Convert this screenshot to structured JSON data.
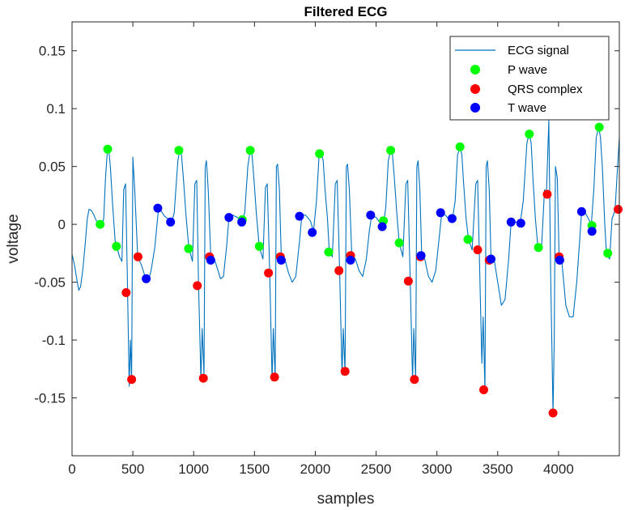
{
  "chart_data": {
    "type": "line",
    "title": "Filtered ECG",
    "xlabel": "samples",
    "ylabel": "voltage",
    "xlim": [
      0,
      4500
    ],
    "ylim": [
      -0.2,
      0.175
    ],
    "x_ticks": [
      0,
      500,
      1000,
      1500,
      2000,
      2500,
      3000,
      3500,
      4000
    ],
    "x_tick_labels": [
      "0",
      "500",
      "1000",
      "1500",
      "2000",
      "2500",
      "3000",
      "3500",
      "4000"
    ],
    "y_ticks": [
      0.15,
      0.1,
      0.05,
      0,
      -0.05,
      -0.1,
      -0.15
    ],
    "y_tick_labels": [
      "0.15",
      "0.1",
      "0.05",
      "0",
      "-0.05",
      "-0.1",
      "-0.15"
    ],
    "grid": false,
    "legend_position": "top-right",
    "colors": {
      "signal": "#0072bd",
      "p_wave": "#00ff00",
      "qrs": "#ff0000",
      "t_wave": "#0000ff"
    },
    "series": [
      {
        "name": "ECG signal",
        "kind": "line",
        "points": [
          [
            0,
            -0.026
          ],
          [
            20,
            -0.035
          ],
          [
            40,
            -0.048
          ],
          [
            55,
            -0.057
          ],
          [
            70,
            -0.054
          ],
          [
            90,
            -0.038
          ],
          [
            110,
            -0.015
          ],
          [
            125,
            0.005
          ],
          [
            140,
            0.013
          ],
          [
            160,
            0.012
          ],
          [
            180,
            0.008
          ],
          [
            200,
            0.003
          ],
          [
            215,
            0.0
          ],
          [
            230,
            0.001
          ],
          [
            245,
            -0.003
          ],
          [
            260,
            0.005
          ],
          [
            275,
            0.04
          ],
          [
            290,
            0.063
          ],
          [
            300,
            0.067
          ],
          [
            315,
            0.05
          ],
          [
            335,
            0.015
          ],
          [
            355,
            -0.015
          ],
          [
            370,
            -0.02
          ],
          [
            390,
            -0.028
          ],
          [
            410,
            -0.032
          ],
          [
            425,
            0.03
          ],
          [
            440,
            0.035
          ],
          [
            455,
            -0.05
          ],
          [
            470,
            -0.14
          ],
          [
            480,
            -0.1
          ],
          [
            490,
            -0.135
          ],
          [
            500,
            0.058
          ],
          [
            515,
            0.03
          ],
          [
            540,
            -0.028
          ],
          [
            570,
            -0.035
          ],
          [
            600,
            -0.045
          ],
          [
            625,
            -0.05
          ],
          [
            650,
            -0.04
          ],
          [
            680,
            -0.02
          ],
          [
            710,
            0.013
          ],
          [
            730,
            0.012
          ],
          [
            760,
            0.007
          ],
          [
            800,
            0.004
          ],
          [
            820,
            0.002
          ],
          [
            840,
            0.01
          ],
          [
            870,
            0.055
          ],
          [
            885,
            0.064
          ],
          [
            900,
            0.06
          ],
          [
            915,
            0.04
          ],
          [
            935,
            0.01
          ],
          [
            960,
            -0.02
          ],
          [
            990,
            -0.032
          ],
          [
            1010,
            0.035
          ],
          [
            1025,
            0.038
          ],
          [
            1040,
            -0.05
          ],
          [
            1060,
            -0.135
          ],
          [
            1070,
            -0.09
          ],
          [
            1085,
            -0.13
          ],
          [
            1095,
            0.05
          ],
          [
            1105,
            0.055
          ],
          [
            1120,
            0.03
          ],
          [
            1140,
            -0.027
          ],
          [
            1170,
            -0.03
          ],
          [
            1200,
            -0.04
          ],
          [
            1220,
            -0.047
          ],
          [
            1245,
            -0.045
          ],
          [
            1270,
            -0.02
          ],
          [
            1290,
            0.006
          ],
          [
            1320,
            0.008
          ],
          [
            1360,
            0.006
          ],
          [
            1395,
            0.003
          ],
          [
            1420,
            0.01
          ],
          [
            1445,
            0.05
          ],
          [
            1465,
            0.064
          ],
          [
            1480,
            0.06
          ],
          [
            1495,
            0.04
          ],
          [
            1515,
            0.01
          ],
          [
            1540,
            -0.02
          ],
          [
            1570,
            -0.03
          ],
          [
            1590,
            0.032
          ],
          [
            1605,
            0.035
          ],
          [
            1625,
            -0.04
          ],
          [
            1645,
            -0.135
          ],
          [
            1655,
            -0.09
          ],
          [
            1670,
            -0.132
          ],
          [
            1680,
            0.05
          ],
          [
            1690,
            0.052
          ],
          [
            1705,
            0.03
          ],
          [
            1720,
            -0.027
          ],
          [
            1750,
            -0.03
          ],
          [
            1780,
            -0.042
          ],
          [
            1810,
            -0.05
          ],
          [
            1840,
            -0.045
          ],
          [
            1870,
            -0.015
          ],
          [
            1890,
            0.008
          ],
          [
            1920,
            0.008
          ],
          [
            1960,
            0.003
          ],
          [
            1985,
            -0.006
          ],
          [
            2010,
            0.02
          ],
          [
            2030,
            0.058
          ],
          [
            2050,
            0.062
          ],
          [
            2065,
            0.055
          ],
          [
            2080,
            0.03
          ],
          [
            2100,
            0.005
          ],
          [
            2115,
            -0.023
          ],
          [
            2140,
            -0.028
          ],
          [
            2165,
            0.035
          ],
          [
            2180,
            0.038
          ],
          [
            2200,
            -0.04
          ],
          [
            2220,
            -0.13
          ],
          [
            2230,
            -0.09
          ],
          [
            2245,
            -0.128
          ],
          [
            2255,
            0.05
          ],
          [
            2265,
            0.052
          ],
          [
            2280,
            0.03
          ],
          [
            2300,
            -0.026
          ],
          [
            2330,
            -0.03
          ],
          [
            2360,
            -0.04
          ],
          [
            2390,
            -0.045
          ],
          [
            2420,
            -0.03
          ],
          [
            2445,
            -0.005
          ],
          [
            2465,
            0.008
          ],
          [
            2500,
            0.006
          ],
          [
            2540,
            0.0
          ],
          [
            2560,
            0.0
          ],
          [
            2580,
            0.015
          ],
          [
            2600,
            0.055
          ],
          [
            2620,
            0.064
          ],
          [
            2635,
            0.06
          ],
          [
            2650,
            0.04
          ],
          [
            2670,
            0.01
          ],
          [
            2690,
            -0.016
          ],
          [
            2720,
            -0.028
          ],
          [
            2745,
            0.035
          ],
          [
            2760,
            0.038
          ],
          [
            2780,
            -0.045
          ],
          [
            2800,
            -0.135
          ],
          [
            2810,
            -0.09
          ],
          [
            2825,
            -0.133
          ],
          [
            2835,
            0.05
          ],
          [
            2845,
            0.055
          ],
          [
            2860,
            0.03
          ],
          [
            2875,
            -0.027
          ],
          [
            2900,
            -0.03
          ],
          [
            2930,
            -0.045
          ],
          [
            2960,
            -0.05
          ],
          [
            2990,
            -0.04
          ],
          [
            3020,
            -0.01
          ],
          [
            3040,
            0.01
          ],
          [
            3070,
            0.008
          ],
          [
            3100,
            0.004
          ],
          [
            3130,
            0.006
          ],
          [
            3150,
            0.02
          ],
          [
            3170,
            0.06
          ],
          [
            3190,
            0.067
          ],
          [
            3205,
            0.06
          ],
          [
            3220,
            0.035
          ],
          [
            3240,
            0.005
          ],
          [
            3260,
            -0.013
          ],
          [
            3290,
            -0.022
          ],
          [
            3320,
            0.035
          ],
          [
            3335,
            0.038
          ],
          [
            3350,
            -0.03
          ],
          [
            3370,
            -0.12
          ],
          [
            3380,
            -0.08
          ],
          [
            3395,
            -0.143
          ],
          [
            3405,
            0.05
          ],
          [
            3415,
            0.055
          ],
          [
            3430,
            0.03
          ],
          [
            3445,
            -0.03
          ],
          [
            3470,
            -0.03
          ],
          [
            3500,
            -0.05
          ],
          [
            3530,
            -0.07
          ],
          [
            3560,
            -0.065
          ],
          [
            3590,
            -0.03
          ],
          [
            3610,
            0.002
          ],
          [
            3650,
            0.002
          ],
          [
            3685,
            0.001
          ],
          [
            3710,
            0.02
          ],
          [
            3740,
            0.07
          ],
          [
            3760,
            0.079
          ],
          [
            3775,
            0.07
          ],
          [
            3790,
            0.04
          ],
          [
            3810,
            0.005
          ],
          [
            3830,
            -0.02
          ],
          [
            3860,
            -0.02
          ],
          [
            3885,
            0.03
          ],
          [
            3900,
            0.025
          ],
          [
            3920,
            0.09
          ],
          [
            3935,
            -0.04
          ],
          [
            3955,
            -0.163
          ],
          [
            3965,
            -0.1
          ],
          [
            3975,
            0.05
          ],
          [
            3990,
            0.04
          ],
          [
            4005,
            -0.028
          ],
          [
            4030,
            -0.035
          ],
          [
            4060,
            -0.07
          ],
          [
            4090,
            -0.08
          ],
          [
            4120,
            -0.08
          ],
          [
            4150,
            -0.05
          ],
          [
            4170,
            -0.02
          ],
          [
            4190,
            0.011
          ],
          [
            4220,
            0.01
          ],
          [
            4250,
            0.004
          ],
          [
            4270,
            0.0
          ],
          [
            4290,
            0.03
          ],
          [
            4310,
            0.075
          ],
          [
            4330,
            0.084
          ],
          [
            4345,
            0.075
          ],
          [
            4360,
            0.05
          ],
          [
            4380,
            0.0
          ],
          [
            4395,
            -0.026
          ],
          [
            4420,
            -0.03
          ],
          [
            4440,
            0.005
          ],
          [
            4465,
            0.012
          ],
          [
            4480,
            0.04
          ],
          [
            4500,
            0.075
          ]
        ]
      },
      {
        "name": "P wave",
        "kind": "markers",
        "points": [
          [
            231,
            0.0
          ],
          [
            293,
            0.065
          ],
          [
            365,
            -0.019
          ],
          [
            878,
            0.064
          ],
          [
            958,
            -0.021
          ],
          [
            1400,
            0.004
          ],
          [
            1465,
            0.064
          ],
          [
            1540,
            -0.019
          ],
          [
            2035,
            0.061
          ],
          [
            2110,
            -0.024
          ],
          [
            2560,
            0.003
          ],
          [
            2620,
            0.064
          ],
          [
            2690,
            -0.016
          ],
          [
            3125,
            0.005
          ],
          [
            3190,
            0.067
          ],
          [
            3255,
            -0.013
          ],
          [
            3760,
            0.078
          ],
          [
            3835,
            -0.02
          ],
          [
            4275,
            -0.001
          ],
          [
            4335,
            0.084
          ],
          [
            4405,
            -0.025
          ]
        ]
      },
      {
        "name": "QRS complex",
        "kind": "markers",
        "points": [
          [
            445,
            -0.059
          ],
          [
            490,
            -0.134
          ],
          [
            542,
            -0.028
          ],
          [
            1030,
            -0.053
          ],
          [
            1080,
            -0.133
          ],
          [
            1130,
            -0.028
          ],
          [
            1615,
            -0.042
          ],
          [
            1665,
            -0.132
          ],
          [
            1713,
            -0.028
          ],
          [
            2195,
            -0.04
          ],
          [
            2245,
            -0.127
          ],
          [
            2290,
            -0.027
          ],
          [
            2765,
            -0.049
          ],
          [
            2815,
            -0.134
          ],
          [
            2865,
            -0.028
          ],
          [
            3335,
            -0.022
          ],
          [
            3385,
            -0.143
          ],
          [
            3430,
            -0.031
          ],
          [
            3907,
            0.026
          ],
          [
            3955,
            -0.163
          ],
          [
            4005,
            -0.028
          ],
          [
            4490,
            0.013
          ]
        ]
      },
      {
        "name": "T wave",
        "kind": "markers",
        "points": [
          [
            610,
            -0.047
          ],
          [
            705,
            0.014
          ],
          [
            810,
            0.002
          ],
          [
            1140,
            -0.031
          ],
          [
            1290,
            0.006
          ],
          [
            1395,
            0.002
          ],
          [
            1720,
            -0.031
          ],
          [
            1870,
            0.007
          ],
          [
            1975,
            -0.007
          ],
          [
            2290,
            -0.031
          ],
          [
            2455,
            0.008
          ],
          [
            2550,
            -0.002
          ],
          [
            2870,
            -0.027
          ],
          [
            3030,
            0.01
          ],
          [
            3125,
            0.005
          ],
          [
            3445,
            -0.03
          ],
          [
            3610,
            0.002
          ],
          [
            3690,
            0.001
          ],
          [
            4010,
            -0.031
          ],
          [
            4190,
            0.011
          ],
          [
            4275,
            -0.006
          ]
        ]
      }
    ]
  }
}
